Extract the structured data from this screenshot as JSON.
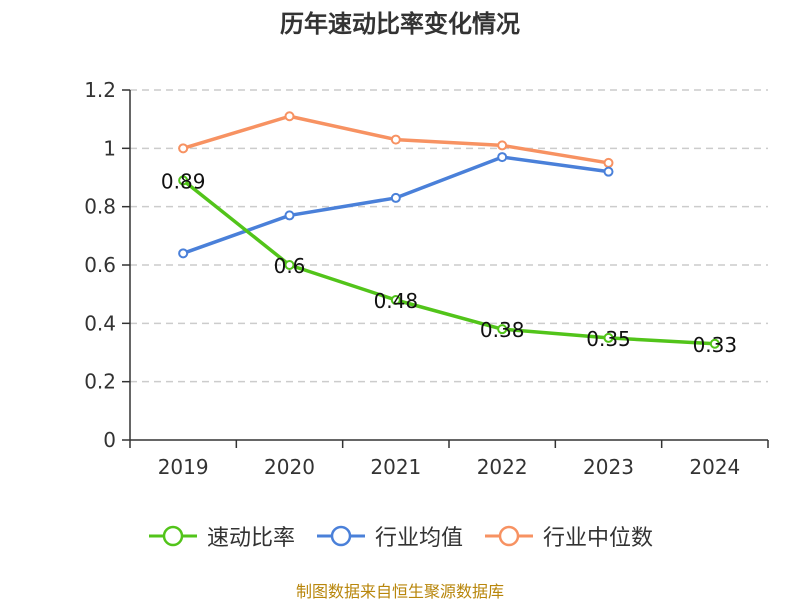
{
  "colors": {
    "series_1": "#52c41a",
    "series_2": "#4a80d9",
    "series_3": "#f79262",
    "grid": "#cccccc",
    "axis": "#333333"
  },
  "source_text": "制图数据来自恒生聚源数据库",
  "chart_data": {
    "type": "line",
    "title": "历年速动比率变化情况",
    "xlabel": "",
    "ylabel": "",
    "categories": [
      "2019",
      "2020",
      "2021",
      "2022",
      "2023",
      "2024"
    ],
    "ylim": [
      0,
      1.2
    ],
    "yticks": [
      "0",
      "0.2",
      "0.4",
      "0.6",
      "0.8",
      "1",
      "1.2"
    ],
    "grid": true,
    "legend_position": "bottom",
    "series": [
      {
        "name": "速动比率",
        "values": [
          0.89,
          0.6,
          0.48,
          0.38,
          0.35,
          0.33
        ],
        "data_labels": [
          "0.89",
          "0.6",
          "0.48",
          "0.38",
          "0.35",
          "0.33"
        ]
      },
      {
        "name": "行业均值",
        "values": [
          0.64,
          0.77,
          0.83,
          0.97,
          0.92,
          null
        ]
      },
      {
        "name": "行业中位数",
        "values": [
          1.0,
          1.11,
          1.03,
          1.01,
          0.95,
          null
        ]
      }
    ]
  }
}
